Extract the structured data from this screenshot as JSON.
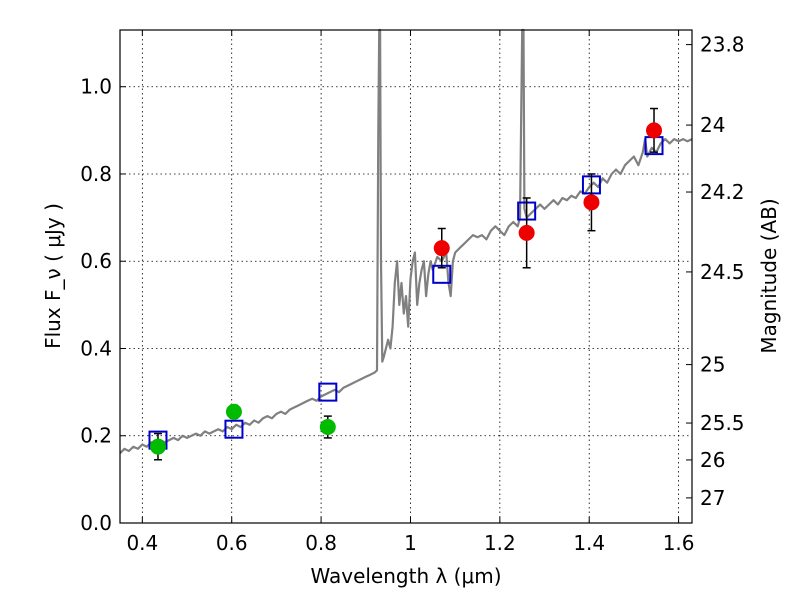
{
  "chart_data": {
    "type": "scatter",
    "title": "",
    "xlabel": "Wavelength  λ (μm)",
    "ylabel": "Flux  F_ν  ( μJy )",
    "y2label": "Magnitude (AB)",
    "xlim": [
      0.35,
      1.63
    ],
    "ylim": [
      0,
      1.13
    ],
    "grid": true,
    "x_ticks": [
      0.4,
      0.6,
      0.8,
      1.0,
      1.2,
      1.4,
      1.6
    ],
    "x_tick_labels": [
      "0.4",
      "0.6",
      "0.8",
      "1",
      "1.2",
      "1.4",
      "1.6"
    ],
    "y_ticks": [
      0,
      0.2,
      0.4,
      0.6,
      0.8,
      1.0
    ],
    "y_tick_labels": [
      "0.0",
      "0.2",
      "0.4",
      "0.6",
      "0.8",
      "1.0"
    ],
    "mag_ticks": [
      23.8,
      24,
      24.2,
      24.5,
      25,
      25.5,
      26,
      27
    ],
    "mag_tick_labels": [
      "23.8",
      "24",
      "24.2",
      "24.5",
      "25",
      "25.5",
      "26",
      "27"
    ],
    "colors": {
      "model": "#808080",
      "model_photometry": "#0000cc",
      "optical_points": "#00bb00",
      "nir_points": "#ee0000",
      "error_bars": "#000000"
    },
    "series": [
      {
        "kind": "line",
        "color_key": "model",
        "points": [
          [
            0.35,
            0.16
          ],
          [
            0.36,
            0.17
          ],
          [
            0.37,
            0.165
          ],
          [
            0.38,
            0.175
          ],
          [
            0.39,
            0.17
          ],
          [
            0.4,
            0.18
          ],
          [
            0.41,
            0.175
          ],
          [
            0.42,
            0.185
          ],
          [
            0.43,
            0.18
          ],
          [
            0.44,
            0.19
          ],
          [
            0.45,
            0.185
          ],
          [
            0.46,
            0.19
          ],
          [
            0.47,
            0.195
          ],
          [
            0.48,
            0.19
          ],
          [
            0.49,
            0.2
          ],
          [
            0.5,
            0.195
          ],
          [
            0.51,
            0.2
          ],
          [
            0.52,
            0.205
          ],
          [
            0.53,
            0.2
          ],
          [
            0.54,
            0.21
          ],
          [
            0.55,
            0.205
          ],
          [
            0.56,
            0.21
          ],
          [
            0.57,
            0.215
          ],
          [
            0.58,
            0.21
          ],
          [
            0.59,
            0.22
          ],
          [
            0.6,
            0.215
          ],
          [
            0.61,
            0.225
          ],
          [
            0.62,
            0.22
          ],
          [
            0.63,
            0.23
          ],
          [
            0.64,
            0.225
          ],
          [
            0.65,
            0.235
          ],
          [
            0.66,
            0.23
          ],
          [
            0.67,
            0.24
          ],
          [
            0.68,
            0.245
          ],
          [
            0.69,
            0.24
          ],
          [
            0.7,
            0.25
          ],
          [
            0.71,
            0.255
          ],
          [
            0.72,
            0.25
          ],
          [
            0.73,
            0.26
          ],
          [
            0.74,
            0.265
          ],
          [
            0.75,
            0.27
          ],
          [
            0.76,
            0.275
          ],
          [
            0.77,
            0.28
          ],
          [
            0.78,
            0.285
          ],
          [
            0.79,
            0.28
          ],
          [
            0.8,
            0.29
          ],
          [
            0.81,
            0.295
          ],
          [
            0.82,
            0.3
          ],
          [
            0.83,
            0.305
          ],
          [
            0.84,
            0.3
          ],
          [
            0.85,
            0.31
          ],
          [
            0.86,
            0.315
          ],
          [
            0.87,
            0.32
          ],
          [
            0.88,
            0.325
          ],
          [
            0.89,
            0.33
          ],
          [
            0.9,
            0.335
          ],
          [
            0.91,
            0.34
          ],
          [
            0.92,
            0.345
          ],
          [
            0.925,
            0.35
          ],
          [
            0.928,
            0.9
          ],
          [
            0.93,
            1.13
          ],
          [
            0.932,
            1.13
          ],
          [
            0.934,
            0.6
          ],
          [
            0.937,
            0.37
          ],
          [
            0.94,
            0.38
          ],
          [
            0.945,
            0.4
          ],
          [
            0.95,
            0.42
          ],
          [
            0.955,
            0.4
          ],
          [
            0.96,
            0.45
          ],
          [
            0.965,
            0.55
          ],
          [
            0.97,
            0.6
          ],
          [
            0.975,
            0.5
          ],
          [
            0.98,
            0.55
          ],
          [
            0.985,
            0.48
          ],
          [
            0.99,
            0.52
          ],
          [
            0.995,
            0.45
          ],
          [
            1.0,
            0.56
          ],
          [
            1.005,
            0.6
          ],
          [
            1.01,
            0.62
          ],
          [
            1.015,
            0.5
          ],
          [
            1.02,
            0.55
          ],
          [
            1.025,
            0.58
          ],
          [
            1.03,
            0.6
          ],
          [
            1.035,
            0.52
          ],
          [
            1.04,
            0.57
          ],
          [
            1.045,
            0.6
          ],
          [
            1.05,
            0.58
          ],
          [
            1.06,
            0.61
          ],
          [
            1.07,
            0.6
          ],
          [
            1.08,
            0.62
          ],
          [
            1.085,
            0.55
          ],
          [
            1.09,
            0.52
          ],
          [
            1.095,
            0.6
          ],
          [
            1.1,
            0.62
          ],
          [
            1.11,
            0.63
          ],
          [
            1.12,
            0.64
          ],
          [
            1.13,
            0.65
          ],
          [
            1.14,
            0.66
          ],
          [
            1.15,
            0.655
          ],
          [
            1.16,
            0.66
          ],
          [
            1.17,
            0.65
          ],
          [
            1.18,
            0.67
          ],
          [
            1.19,
            0.68
          ],
          [
            1.2,
            0.67
          ],
          [
            1.21,
            0.66
          ],
          [
            1.22,
            0.68
          ],
          [
            1.23,
            0.69
          ],
          [
            1.24,
            0.68
          ],
          [
            1.245,
            0.7
          ],
          [
            1.25,
            1.13
          ],
          [
            1.253,
            1.13
          ],
          [
            1.255,
            0.72
          ],
          [
            1.26,
            0.7
          ],
          [
            1.27,
            0.71
          ],
          [
            1.28,
            0.72
          ],
          [
            1.29,
            0.73
          ],
          [
            1.3,
            0.72
          ],
          [
            1.31,
            0.73
          ],
          [
            1.32,
            0.74
          ],
          [
            1.33,
            0.73
          ],
          [
            1.34,
            0.745
          ],
          [
            1.35,
            0.74
          ],
          [
            1.36,
            0.75
          ],
          [
            1.37,
            0.745
          ],
          [
            1.38,
            0.76
          ],
          [
            1.39,
            0.755
          ],
          [
            1.4,
            0.77
          ],
          [
            1.41,
            0.78
          ],
          [
            1.42,
            0.77
          ],
          [
            1.43,
            0.79
          ],
          [
            1.44,
            0.78
          ],
          [
            1.45,
            0.8
          ],
          [
            1.46,
            0.81
          ],
          [
            1.47,
            0.8
          ],
          [
            1.48,
            0.82
          ],
          [
            1.49,
            0.83
          ],
          [
            1.5,
            0.84
          ],
          [
            1.51,
            0.82
          ],
          [
            1.52,
            0.85
          ],
          [
            1.525,
            0.88
          ],
          [
            1.53,
            0.84
          ],
          [
            1.54,
            0.86
          ],
          [
            1.55,
            0.85
          ],
          [
            1.56,
            0.87
          ],
          [
            1.57,
            0.88
          ],
          [
            1.58,
            0.87
          ],
          [
            1.59,
            0.88
          ],
          [
            1.6,
            0.875
          ],
          [
            1.61,
            0.88
          ],
          [
            1.62,
            0.875
          ],
          [
            1.63,
            0.88
          ]
        ]
      },
      {
        "kind": "squares",
        "color_key": "model_photometry",
        "points": [
          [
            0.435,
            0.19
          ],
          [
            0.605,
            0.215
          ],
          [
            0.815,
            0.3
          ],
          [
            1.07,
            0.57
          ],
          [
            1.26,
            0.715
          ],
          [
            1.405,
            0.775
          ],
          [
            1.545,
            0.865
          ]
        ]
      },
      {
        "kind": "points",
        "color_key": "optical_points",
        "points": [
          {
            "x": 0.435,
            "y": 0.175,
            "err": 0.03
          },
          {
            "x": 0.605,
            "y": 0.255,
            "err": 0.015
          },
          {
            "x": 0.815,
            "y": 0.22,
            "err": 0.025
          }
        ]
      },
      {
        "kind": "points",
        "color_key": "nir_points",
        "points": [
          {
            "x": 1.07,
            "y": 0.63,
            "err": 0.045
          },
          {
            "x": 1.26,
            "y": 0.665,
            "err": 0.08
          },
          {
            "x": 1.405,
            "y": 0.735,
            "err": 0.065
          },
          {
            "x": 1.545,
            "y": 0.9,
            "err": 0.05
          }
        ]
      }
    ]
  }
}
